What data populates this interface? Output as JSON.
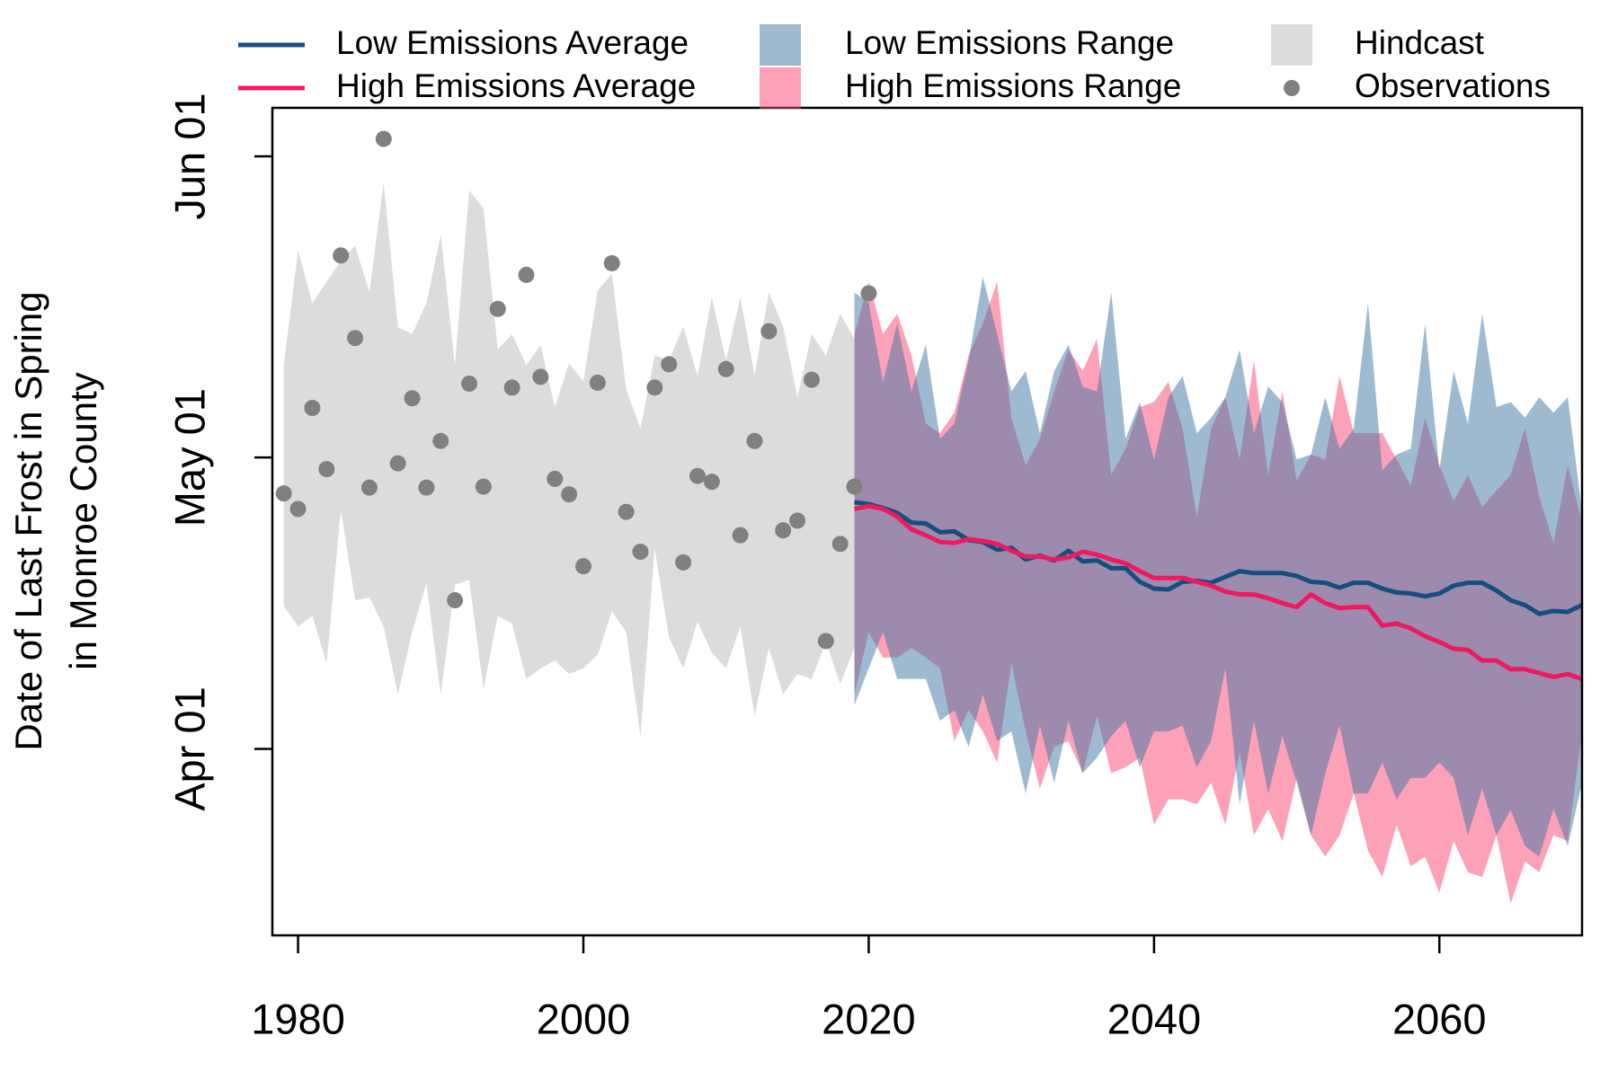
{
  "chart_data": {
    "type": "line",
    "ylabel": [
      "Date of Last Frost in Spring",
      "in Monroe County"
    ],
    "xlim": [
      1978.2,
      2070.0
    ],
    "ylim": [
      71.8,
      157.0
    ],
    "xticks": [
      1980,
      2000,
      2020,
      2040,
      2060
    ],
    "yticks": [
      {
        "value": 91,
        "label": "Apr 01"
      },
      {
        "value": 121,
        "label": "May 01"
      },
      {
        "value": 152,
        "label": "Jun 01"
      }
    ],
    "series": [
      {
        "name": "Hindcast",
        "kind": "band",
        "color": "#dcdcdc",
        "x": [
          1979,
          1980,
          1981,
          1982,
          1983,
          1984,
          1985,
          1986,
          1987,
          1988,
          1989,
          1990,
          1991,
          1992,
          1993,
          1994,
          1995,
          1996,
          1997,
          1998,
          1999,
          2000,
          2001,
          2002,
          2003,
          2004,
          2005,
          2006,
          2007,
          2008,
          2009,
          2010,
          2011,
          2012,
          2013,
          2014,
          2015,
          2016,
          2017,
          2018,
          2019
        ],
        "upper": [
          130.5,
          142.3,
          136.9,
          139.1,
          141.2,
          142.8,
          138.0,
          149.3,
          134.4,
          133.7,
          136.9,
          143.9,
          130.5,
          148.5,
          146.6,
          132.1,
          133.7,
          130.5,
          132.6,
          126.2,
          130.7,
          128.8,
          138.2,
          139.9,
          128.0,
          124.0,
          131.5,
          131.0,
          134.5,
          129.4,
          137.5,
          131.0,
          137.5,
          129.4,
          138.0,
          134.5,
          127.2,
          133.7,
          131.5,
          135.8,
          133.2
        ],
        "lower": [
          105.7,
          103.6,
          104.7,
          99.8,
          115.6,
          106.3,
          106.6,
          103.6,
          96.6,
          103.0,
          108.1,
          96.6,
          107.9,
          108.4,
          97.1,
          104.7,
          103.9,
          98.2,
          99.3,
          100.1,
          98.7,
          99.3,
          100.7,
          105.2,
          103.0,
          92.3,
          111.6,
          102.5,
          99.3,
          104.1,
          100.9,
          99.3,
          103.6,
          94.4,
          101.4,
          96.6,
          98.7,
          98.2,
          102.0,
          97.7,
          101.4
        ]
      },
      {
        "name": "High Emissions Range",
        "kind": "band",
        "color": "rgba(251,67,113,0.5)",
        "x": [
          2019,
          2020,
          2021,
          2022,
          2023,
          2024,
          2025,
          2026,
          2027,
          2028,
          2029,
          2030,
          2031,
          2032,
          2033,
          2034,
          2035,
          2036,
          2037,
          2038,
          2039,
          2040,
          2041,
          2042,
          2043,
          2044,
          2045,
          2046,
          2047,
          2048,
          2049,
          2050,
          2051,
          2052,
          2053,
          2054,
          2055,
          2056,
          2057,
          2058,
          2059,
          2060,
          2061,
          2062,
          2063,
          2064,
          2065,
          2066,
          2067,
          2068,
          2069,
          2070
        ],
        "upper": [
          133.7,
          139.1,
          133.7,
          135.8,
          131.5,
          124.5,
          123.5,
          125.6,
          131.5,
          134.8,
          139.1,
          125.1,
          120.2,
          122.9,
          127.8,
          132.1,
          129.9,
          133.2,
          119.2,
          121.9,
          126.2,
          126.7,
          128.8,
          124.0,
          114.9,
          124.0,
          127.2,
          120.8,
          131.0,
          119.2,
          127.8,
          118.6,
          121.3,
          120.8,
          129.4,
          123.5,
          123.5,
          123.5,
          120.8,
          118.1,
          125.1,
          120.2,
          116.5,
          119.2,
          115.9,
          117.6,
          119.2,
          124.0,
          117.0,
          112.2,
          120.2,
          114.3
        ],
        "lower": [
          96.6,
          103.0,
          100.4,
          100.4,
          101.4,
          100.4,
          99.3,
          91.8,
          95.0,
          92.8,
          89.6,
          99.8,
          92.8,
          86.9,
          91.2,
          91.8,
          88.5,
          94.4,
          88.5,
          89.1,
          90.1,
          83.2,
          85.8,
          85.8,
          85.3,
          87.5,
          83.2,
          90.7,
          82.1,
          84.8,
          81.5,
          88.0,
          82.1,
          79.9,
          82.1,
          86.4,
          80.5,
          77.8,
          83.2,
          78.9,
          79.9,
          76.2,
          81.5,
          78.3,
          77.8,
          82.1,
          75.1,
          79.4,
          78.3,
          82.1,
          81.5,
          92.8
        ]
      },
      {
        "name": "Low Emissions Range",
        "kind": "band",
        "color": "rgba(61,117,161,0.5)",
        "x": [
          2019,
          2020,
          2021,
          2022,
          2023,
          2024,
          2025,
          2026,
          2027,
          2028,
          2029,
          2030,
          2031,
          2032,
          2033,
          2034,
          2035,
          2036,
          2037,
          2038,
          2039,
          2040,
          2041,
          2042,
          2043,
          2044,
          2045,
          2046,
          2047,
          2048,
          2049,
          2050,
          2051,
          2052,
          2053,
          2054,
          2055,
          2056,
          2057,
          2058,
          2059,
          2060,
          2061,
          2062,
          2063,
          2064,
          2065,
          2066,
          2067,
          2068,
          2069,
          2070
        ],
        "upper": [
          138.0,
          136.9,
          128.8,
          134.8,
          127.8,
          132.6,
          122.9,
          124.5,
          131.0,
          139.6,
          133.7,
          127.8,
          129.9,
          123.5,
          129.9,
          132.6,
          128.3,
          127.8,
          138.0,
          122.9,
          126.7,
          120.8,
          127.2,
          129.4,
          123.5,
          125.1,
          127.2,
          132.1,
          123.5,
          128.3,
          126.7,
          120.8,
          121.3,
          127.2,
          121.9,
          124.0,
          136.9,
          119.7,
          121.3,
          121.9,
          134.8,
          119.7,
          129.9,
          124.5,
          135.8,
          126.2,
          126.7,
          125.1,
          127.2,
          125.6,
          127.2,
          115.4
        ],
        "lower": [
          95.5,
          99.3,
          103.0,
          98.2,
          98.2,
          98.2,
          93.9,
          95.0,
          91.2,
          96.6,
          91.8,
          92.8,
          86.4,
          93.4,
          87.5,
          93.9,
          88.5,
          90.1,
          92.3,
          93.9,
          89.1,
          92.8,
          92.8,
          93.4,
          89.1,
          91.8,
          99.3,
          85.3,
          93.9,
          86.4,
          92.3,
          87.5,
          82.1,
          88.5,
          93.4,
          86.4,
          86.4,
          89.6,
          85.8,
          88.0,
          88.0,
          89.6,
          88.0,
          82.1,
          86.9,
          82.1,
          84.7,
          81.0,
          79.9,
          84.8,
          81.0,
          87.5
        ]
      },
      {
        "name": "Low Emissions Average",
        "kind": "line",
        "color": "#164e80",
        "x": [
          2019,
          2020,
          2021,
          2022,
          2023,
          2024,
          2025,
          2026,
          2027,
          2028,
          2029,
          2030,
          2031,
          2032,
          2033,
          2034,
          2035,
          2036,
          2037,
          2038,
          2039,
          2040,
          2041,
          2042,
          2043,
          2044,
          2045,
          2046,
          2047,
          2048,
          2049,
          2050,
          2051,
          2052,
          2053,
          2054,
          2055,
          2056,
          2057,
          2058,
          2059,
          2060,
          2061,
          2062,
          2063,
          2064,
          2065,
          2066,
          2067,
          2068,
          2069,
          2070
        ],
        "values": [
          116.4,
          116.2,
          115.8,
          115.3,
          114.3,
          114.2,
          113.3,
          113.4,
          112.5,
          112.3,
          111.5,
          111.7,
          110.5,
          110.9,
          110.4,
          111.4,
          110.3,
          110.4,
          109.6,
          109.6,
          108.2,
          107.5,
          107.4,
          108.2,
          108.3,
          108.1,
          108.7,
          109.3,
          109.1,
          109.1,
          109.1,
          108.8,
          108.2,
          108.1,
          107.6,
          108.1,
          108.1,
          107.5,
          107.1,
          107.0,
          106.7,
          107.0,
          107.8,
          108.1,
          108.1,
          107.3,
          106.3,
          105.8,
          104.9,
          105.2,
          105.1,
          105.8
        ]
      },
      {
        "name": "High Emissions Average",
        "kind": "line",
        "color": "#ee1a5e",
        "x": [
          2019,
          2020,
          2021,
          2022,
          2023,
          2024,
          2025,
          2026,
          2027,
          2028,
          2029,
          2030,
          2031,
          2032,
          2033,
          2034,
          2035,
          2036,
          2037,
          2038,
          2039,
          2040,
          2041,
          2042,
          2043,
          2044,
          2045,
          2046,
          2047,
          2048,
          2049,
          2050,
          2051,
          2052,
          2053,
          2054,
          2055,
          2056,
          2057,
          2058,
          2059,
          2060,
          2061,
          2062,
          2063,
          2064,
          2065,
          2066,
          2067,
          2068,
          2069,
          2070
        ],
        "values": [
          115.7,
          116.0,
          115.7,
          114.9,
          113.6,
          113.0,
          112.3,
          112.2,
          112.6,
          112.4,
          112.1,
          111.4,
          110.8,
          110.8,
          110.5,
          110.7,
          111.3,
          111.0,
          110.5,
          110.1,
          109.3,
          108.6,
          108.6,
          108.6,
          108.2,
          107.8,
          107.2,
          106.9,
          106.9,
          106.5,
          106.0,
          105.6,
          106.9,
          106.0,
          105.5,
          105.6,
          105.6,
          103.7,
          103.9,
          103.4,
          102.6,
          102.0,
          101.3,
          101.2,
          100.1,
          100.1,
          99.2,
          99.2,
          98.8,
          98.4,
          98.7,
          98.2
        ]
      },
      {
        "name": "Observations",
        "kind": "points",
        "color": "#808080",
        "x": [
          1979,
          1980,
          1981,
          1982,
          1983,
          1984,
          1985,
          1986,
          1987,
          1988,
          1989,
          1990,
          1991,
          1992,
          1993,
          1994,
          1995,
          1996,
          1997,
          1998,
          1999,
          2000,
          2001,
          2002,
          2003,
          2004,
          2005,
          2006,
          2007,
          2008,
          2009,
          2010,
          2011,
          2012,
          2013,
          2014,
          2015,
          2016,
          2017,
          2018,
          2019,
          2020
        ],
        "values": [
          117.3,
          115.7,
          126.1,
          119.8,
          141.8,
          133.3,
          117.9,
          153.8,
          120.4,
          127.1,
          117.9,
          122.7,
          106.3,
          128.6,
          118.0,
          136.3,
          128.2,
          139.8,
          129.3,
          118.8,
          117.2,
          109.8,
          128.7,
          141.0,
          115.4,
          111.3,
          128.2,
          130.6,
          110.2,
          119.1,
          118.5,
          130.1,
          113.0,
          122.7,
          134.0,
          113.5,
          114.5,
          129.0,
          102.1,
          112.1,
          118.0,
          137.9
        ]
      }
    ]
  }
}
